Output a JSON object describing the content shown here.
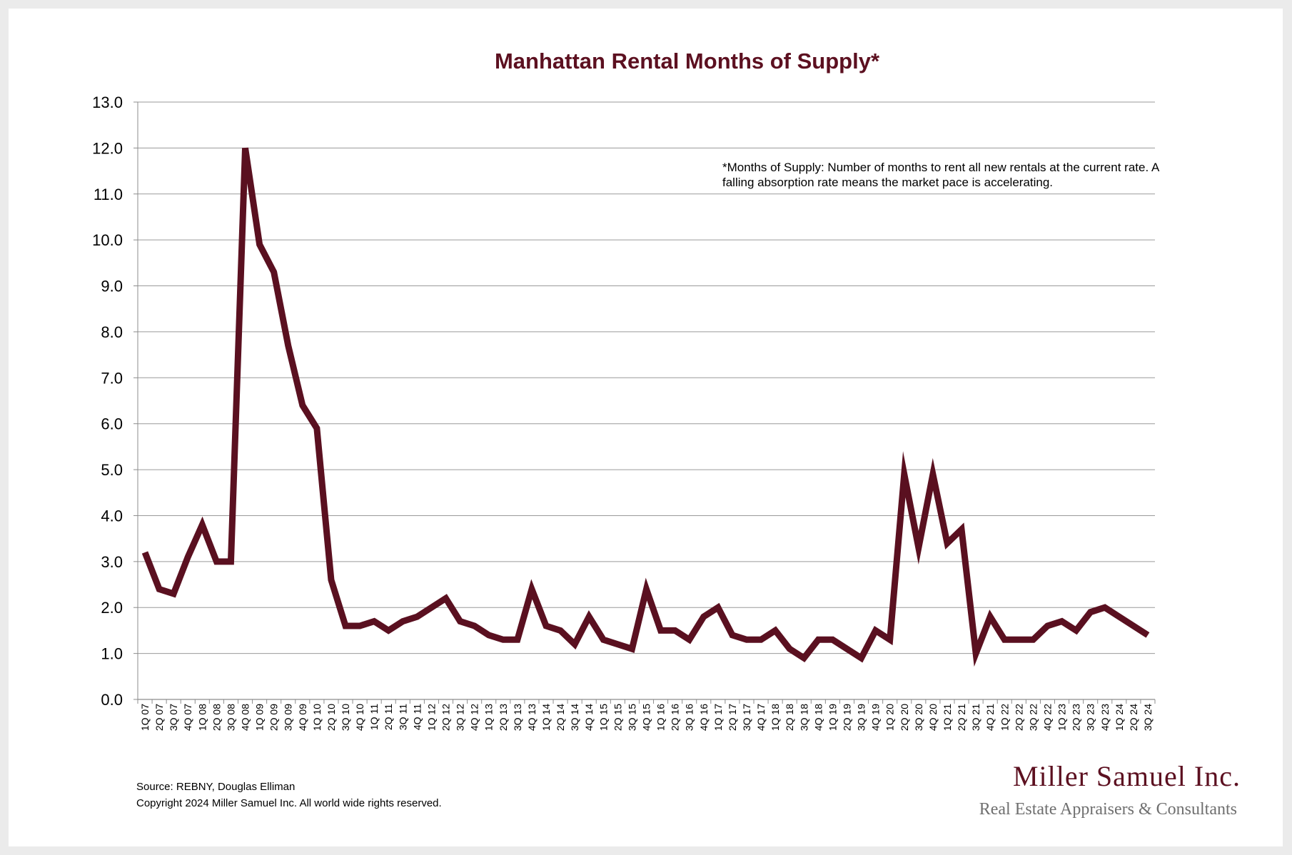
{
  "chart_data": {
    "type": "line",
    "title": "Manhattan Rental Months of Supply*",
    "xlabel": "",
    "ylabel": "",
    "ylim": [
      0,
      13
    ],
    "yticks": [
      "0.0",
      "1.0",
      "2.0",
      "3.0",
      "4.0",
      "5.0",
      "6.0",
      "7.0",
      "8.0",
      "9.0",
      "10.0",
      "11.0",
      "12.0",
      "13.0"
    ],
    "grid": true,
    "legend": "none",
    "line_color": "#5a1020",
    "categories": [
      "1Q 07",
      "2Q 07",
      "3Q 07",
      "4Q 07",
      "1Q 08",
      "2Q 08",
      "3Q 08",
      "4Q 08",
      "1Q 09",
      "2Q 09",
      "3Q 09",
      "4Q 09",
      "1Q 10",
      "2Q 10",
      "3Q 10",
      "4Q 10",
      "1Q 11",
      "2Q 11",
      "3Q 11",
      "4Q 11",
      "1Q 12",
      "2Q 12",
      "3Q 12",
      "4Q 12",
      "1Q 13",
      "2Q 13",
      "3Q 13",
      "4Q 13",
      "1Q 14",
      "2Q 14",
      "3Q 14",
      "4Q 14",
      "1Q 15",
      "2Q 15",
      "3Q 15",
      "4Q 15",
      "1Q 16",
      "2Q 16",
      "3Q 16",
      "4Q 16",
      "1Q 17",
      "2Q 17",
      "3Q 17",
      "4Q 17",
      "1Q 18",
      "2Q 18",
      "3Q 18",
      "4Q 18",
      "1Q 19",
      "2Q 19",
      "3Q 19",
      "4Q 19",
      "1Q 20",
      "2Q 20",
      "3Q 20",
      "4Q 20",
      "1Q 21",
      "2Q 21",
      "3Q 21",
      "4Q 21",
      "1Q 22",
      "2Q 22",
      "3Q 22",
      "4Q 22",
      "1Q 23",
      "2Q 23",
      "3Q 23",
      "4Q 23",
      "1Q 24",
      "2Q 24",
      "3Q 24"
    ],
    "series": [
      {
        "name": "Months of Supply",
        "values": [
          3.2,
          2.4,
          2.3,
          3.1,
          3.8,
          3.0,
          3.0,
          12.0,
          9.9,
          9.3,
          7.7,
          6.4,
          5.9,
          2.6,
          1.6,
          1.6,
          1.7,
          1.5,
          1.7,
          1.8,
          2.0,
          2.2,
          1.7,
          1.6,
          1.4,
          1.3,
          1.3,
          2.4,
          1.6,
          1.5,
          1.2,
          1.8,
          1.3,
          1.2,
          1.1,
          2.4,
          1.5,
          1.5,
          1.3,
          1.8,
          2.0,
          1.4,
          1.3,
          1.3,
          1.5,
          1.1,
          0.9,
          1.3,
          1.3,
          1.1,
          0.9,
          1.5,
          1.3,
          4.9,
          3.3,
          4.9,
          3.4,
          3.7,
          1.0,
          1.8,
          1.3,
          1.3,
          1.3,
          1.6,
          1.7,
          1.5,
          1.9,
          2.0,
          1.8,
          1.6,
          1.4
        ]
      }
    ],
    "annotation": "*Months of Supply: Number of months to rent all new rentals at the current rate. A falling absorption rate means the market pace is accelerating."
  },
  "footer": {
    "source": "Source: REBNY, Douglas Elliman",
    "copyright": "Copyright 2024 Miller Samuel Inc.  All world wide rights reserved."
  },
  "logo": {
    "name": "Miller Samuel Inc.",
    "tagline": "Real Estate Appraisers & Consultants"
  }
}
